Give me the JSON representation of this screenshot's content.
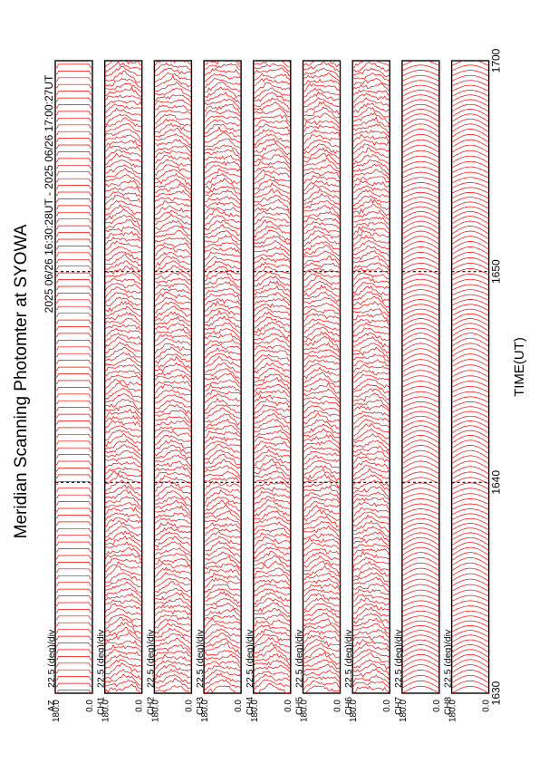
{
  "title": "Meridian Scanning Photomter at SYOWA",
  "subtitle": "2025 06/26 16:30:28UT - 2025 06/26 17:00:27UT",
  "chart_data": {
    "type": "line",
    "orientation": "rotated 90 degrees clockwise",
    "xlabel": "TIME(UT)",
    "x_ticks": [
      "1630",
      "1640",
      "1650",
      "1700"
    ],
    "xlim": [
      "16:30",
      "17:00"
    ],
    "scale_label": "22.5 (deg)/div",
    "panel_ylim": [
      0.0,
      180.0
    ],
    "panel_ytick_labels": [
      "0.0",
      "180.0"
    ],
    "grid": "dashed lines at 1640 and 1650",
    "trace_color": "#ff0000",
    "panels": [
      {
        "channel": "AZ",
        "style": "reference"
      },
      {
        "channel": "CH1",
        "style": "structured"
      },
      {
        "channel": "CH2",
        "style": "structured"
      },
      {
        "channel": "CH3",
        "style": "structured"
      },
      {
        "channel": "CH4",
        "style": "structured"
      },
      {
        "channel": "CH5",
        "style": "structured"
      },
      {
        "channel": "CH6",
        "style": "structured"
      },
      {
        "channel": "CH7",
        "style": "smooth"
      },
      {
        "channel": "CH8",
        "style": "smooth"
      }
    ]
  }
}
